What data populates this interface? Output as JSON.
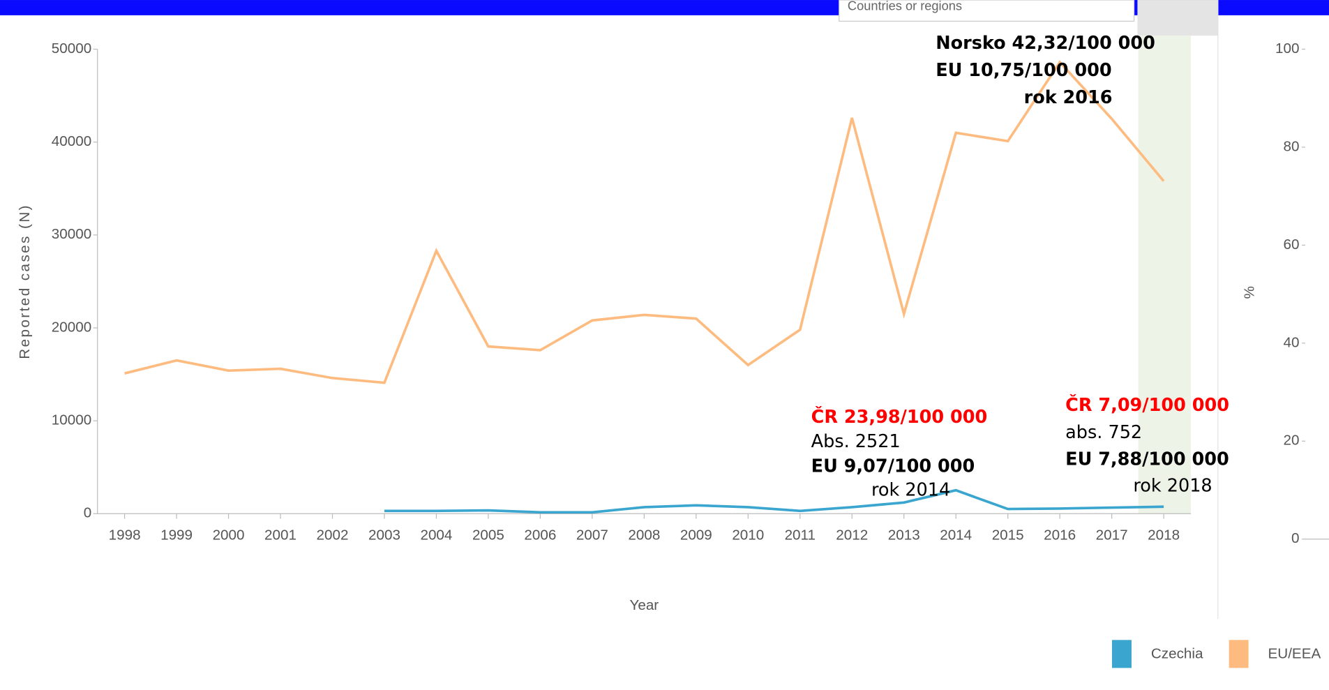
{
  "chart_data": {
    "type": "line",
    "filter_label": "Countries or regions",
    "x": [
      1998,
      1999,
      2000,
      2001,
      2002,
      2003,
      2004,
      2005,
      2006,
      2007,
      2008,
      2009,
      2010,
      2011,
      2012,
      2013,
      2014,
      2015,
      2016,
      2017,
      2018
    ],
    "xlabel": "Year",
    "ylabel": "Reported cases (N)",
    "y2label": "%",
    "ylim": [
      0,
      50000
    ],
    "yticks": [
      0,
      10000,
      20000,
      30000,
      40000,
      50000
    ],
    "y2lim": [
      0,
      100
    ],
    "y2ticks": [
      0,
      20,
      40,
      60,
      80,
      100
    ],
    "legend": "bottom-right",
    "series": [
      {
        "name": "Czechia",
        "color": "#3aa6cf",
        "values": [
          null,
          null,
          null,
          null,
          null,
          300,
          300,
          350,
          150,
          150,
          700,
          900,
          700,
          300,
          700,
          1200,
          2521,
          500,
          550,
          650,
          752
        ]
      },
      {
        "name": "EU/EEA",
        "color": "#fdbb7f",
        "values": [
          15100,
          16500,
          15400,
          15600,
          14600,
          14100,
          28300,
          18000,
          17600,
          20800,
          21400,
          21000,
          16000,
          19800,
          42600,
          21500,
          41000,
          40100,
          48600,
          42500,
          35800
        ]
      }
    ],
    "annotations": [
      "Norsko 42,32/100 000",
      "EU 10,75/100 000",
      "rok 2016",
      "ČR  23,98/100 000",
      "Abs. 2521",
      "EU 9,07/100 000",
      "rok 2014",
      "ČR  7,09/100 000",
      "abs. 752",
      "EU 7,88/100 000",
      "rok 2018"
    ]
  }
}
